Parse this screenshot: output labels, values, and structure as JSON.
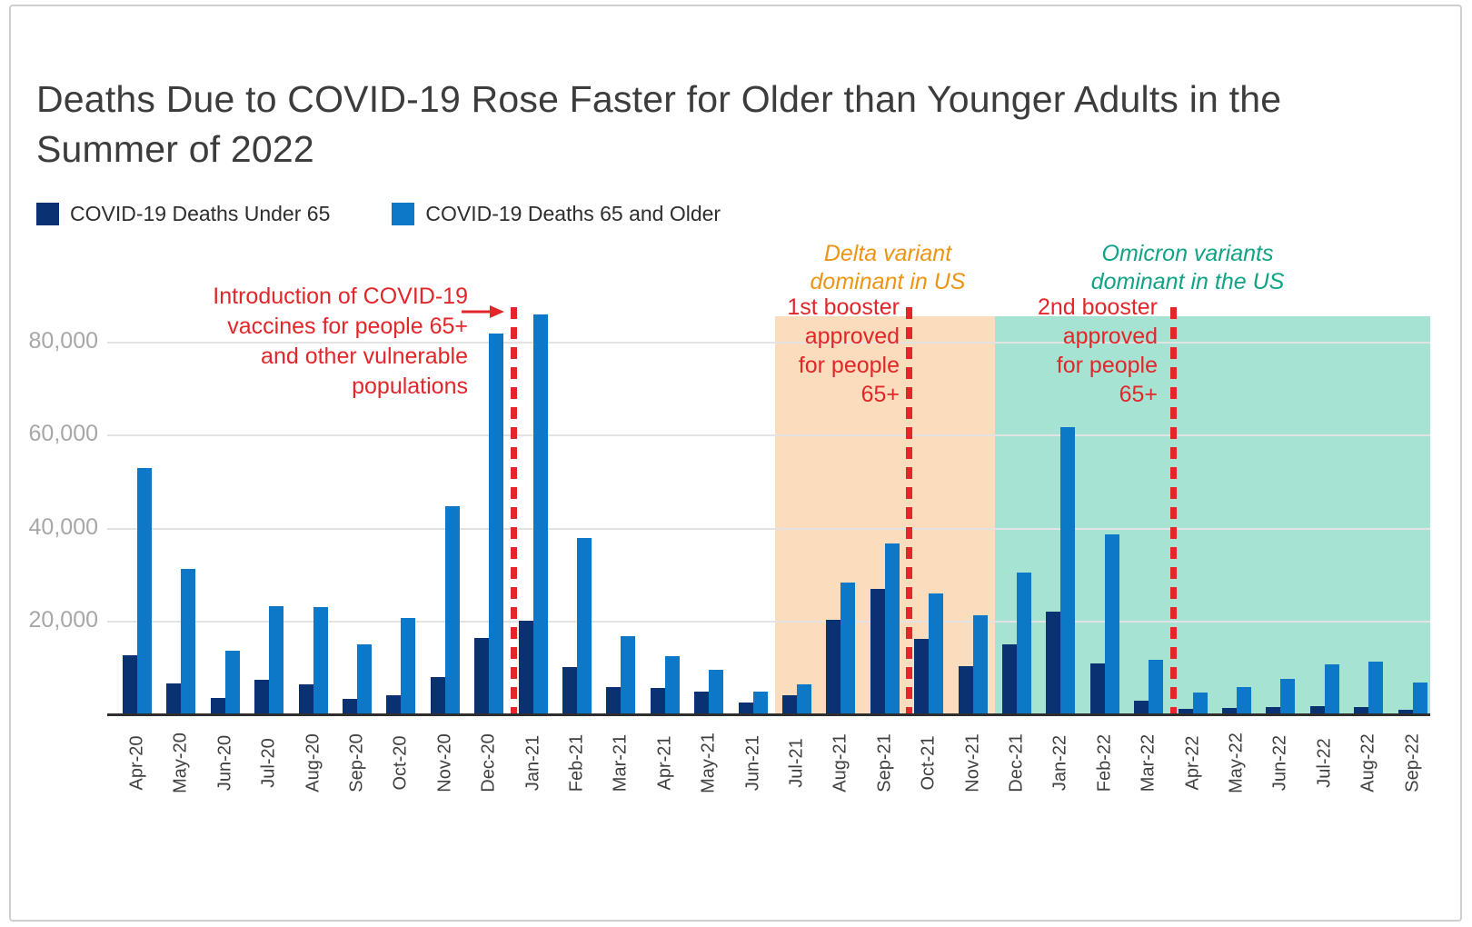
{
  "header": {
    "title": "Deaths Due to COVID-19 Rose Faster for Older than Younger Adults in the Summer of 2022"
  },
  "legend": {
    "items": [
      {
        "label": "COVID-19 Deaths Under 65",
        "color": "#0a3273"
      },
      {
        "label": "COVID-19 Deaths 65 and Older",
        "color": "#0d78c8"
      }
    ]
  },
  "colors": {
    "under_65_bar": "#0a3273",
    "65_older_bar": "#0d78c8",
    "delta_region": "#fbdcbc",
    "omicron_region": "#a6e3d3",
    "event_line_red": "#e2262a",
    "delta_text": "#ee9414",
    "omicron_text": "#10a385"
  },
  "chart_data": {
    "type": "bar",
    "title": "Deaths Due to COVID-19 Rose Faster for Older than Younger Adults in the Summer of 2022",
    "xlabel": "",
    "ylabel": "",
    "ylim": [
      0,
      88000
    ],
    "grid": true,
    "legend_position": "top-left",
    "yticks": [
      20000,
      40000,
      60000,
      80000
    ],
    "ytick_labels": [
      "20,000",
      "40,000",
      "60,000",
      "80,000"
    ],
    "categories": [
      "Apr-20",
      "May-20",
      "Jun-20",
      "Jul-20",
      "Aug-20",
      "Sep-20",
      "Oct-20",
      "Nov-20",
      "Dec-20",
      "Jan-21",
      "Feb-21",
      "Mar-21",
      "Apr-21",
      "May-21",
      "Jun-21",
      "Jul-21",
      "Aug-21",
      "Sep-21",
      "Oct-21",
      "Nov-21",
      "Dec-21",
      "Jan-22",
      "Feb-22",
      "Mar-22",
      "Apr-22",
      "May-22",
      "Jun-22",
      "Jul-22",
      "Aug-22",
      "Sep-22"
    ],
    "series": [
      {
        "name": "COVID-19 Deaths Under 65",
        "color": "#0a3273",
        "values": [
          12700,
          6700,
          3500,
          7500,
          6500,
          3300,
          4100,
          8100,
          16400,
          20100,
          10200,
          5900,
          5700,
          4900,
          2600,
          4100,
          20400,
          26900,
          16300,
          10400,
          15000,
          22100,
          11000,
          3000,
          1200,
          1400,
          1600,
          1800,
          1600,
          900
        ]
      },
      {
        "name": "COVID-19 Deaths 65 and Older",
        "color": "#0d78c8",
        "values": [
          53000,
          31300,
          13600,
          23200,
          23000,
          15100,
          20700,
          44800,
          82000,
          86000,
          37900,
          16800,
          12500,
          9500,
          4800,
          6500,
          28300,
          36700,
          26100,
          21400,
          30600,
          61800,
          38700,
          11800,
          4700,
          5800,
          7700,
          10800,
          11300,
          6800
        ]
      }
    ],
    "regions": [
      {
        "label": "Delta variant\ndominant in US",
        "start_index": 15,
        "end_index": 19,
        "color": "#fbdcbc",
        "text_color": "#ee9414"
      },
      {
        "label": "Omicron variants\ndominant in the US",
        "start_index": 20,
        "end_index": 29,
        "color": "#a6e3d3",
        "text_color": "#10a385"
      }
    ],
    "event_lines": [
      {
        "label": "Introduction of COVID-19\nvaccines for people 65+\nand other vulnerable\npopulations",
        "before_index": 9,
        "color": "#e2262a"
      },
      {
        "label": "1st booster\napproved\nfor people\n65+",
        "before_index": 18,
        "color": "#e2262a"
      },
      {
        "label": "2nd booster\napproved\nfor people\n65+",
        "before_index": 24,
        "color": "#e2262a"
      }
    ]
  }
}
